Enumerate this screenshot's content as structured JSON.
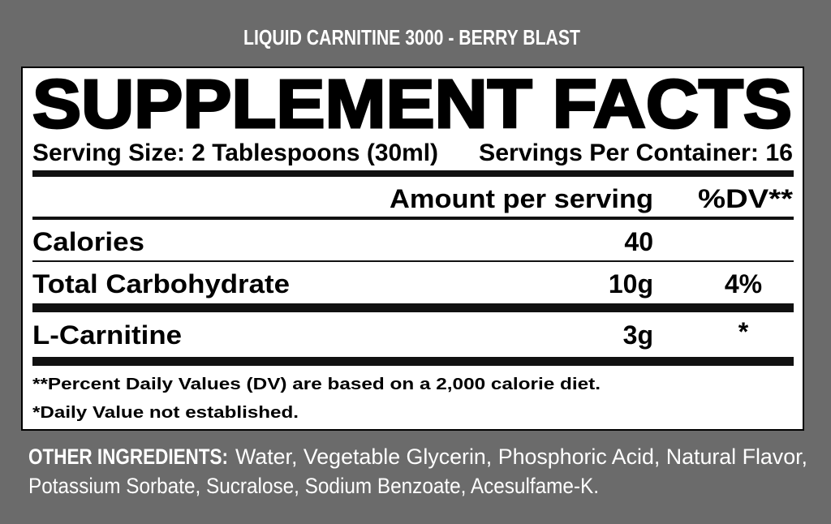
{
  "title": "LIQUID CARNITINE 3000 - BERRY BLAST",
  "panel": {
    "heading": "SUPPLEMENT FACTS",
    "serving_size": "Serving Size: 2 Tablespoons (30ml)",
    "servings_per_container": "Servings Per Container: 16",
    "columns": {
      "amount": "Amount per serving",
      "dv": "%DV**"
    },
    "rows": [
      {
        "name": "Calories",
        "amount": "40"
      },
      {
        "name": "Total Carbohydrate",
        "amount": "10g",
        "dv": "4%"
      },
      {
        "name": "L-Carnitine",
        "amount": "3g",
        "dv": "*"
      }
    ],
    "footnotes": [
      "**Percent Daily Values (DV) are based on a 2,000 calorie diet.",
      "*Daily Value not established."
    ]
  },
  "other_ingredients": {
    "label": "OTHER INGREDIENTS:",
    "lines": [
      "Water, Vegetable Glycerin, Phosphoric Acid, Natural Flavor,",
      "Potassium Sorbate, Sucralose, Sodium Benzoate, Acesulfame-K."
    ]
  }
}
